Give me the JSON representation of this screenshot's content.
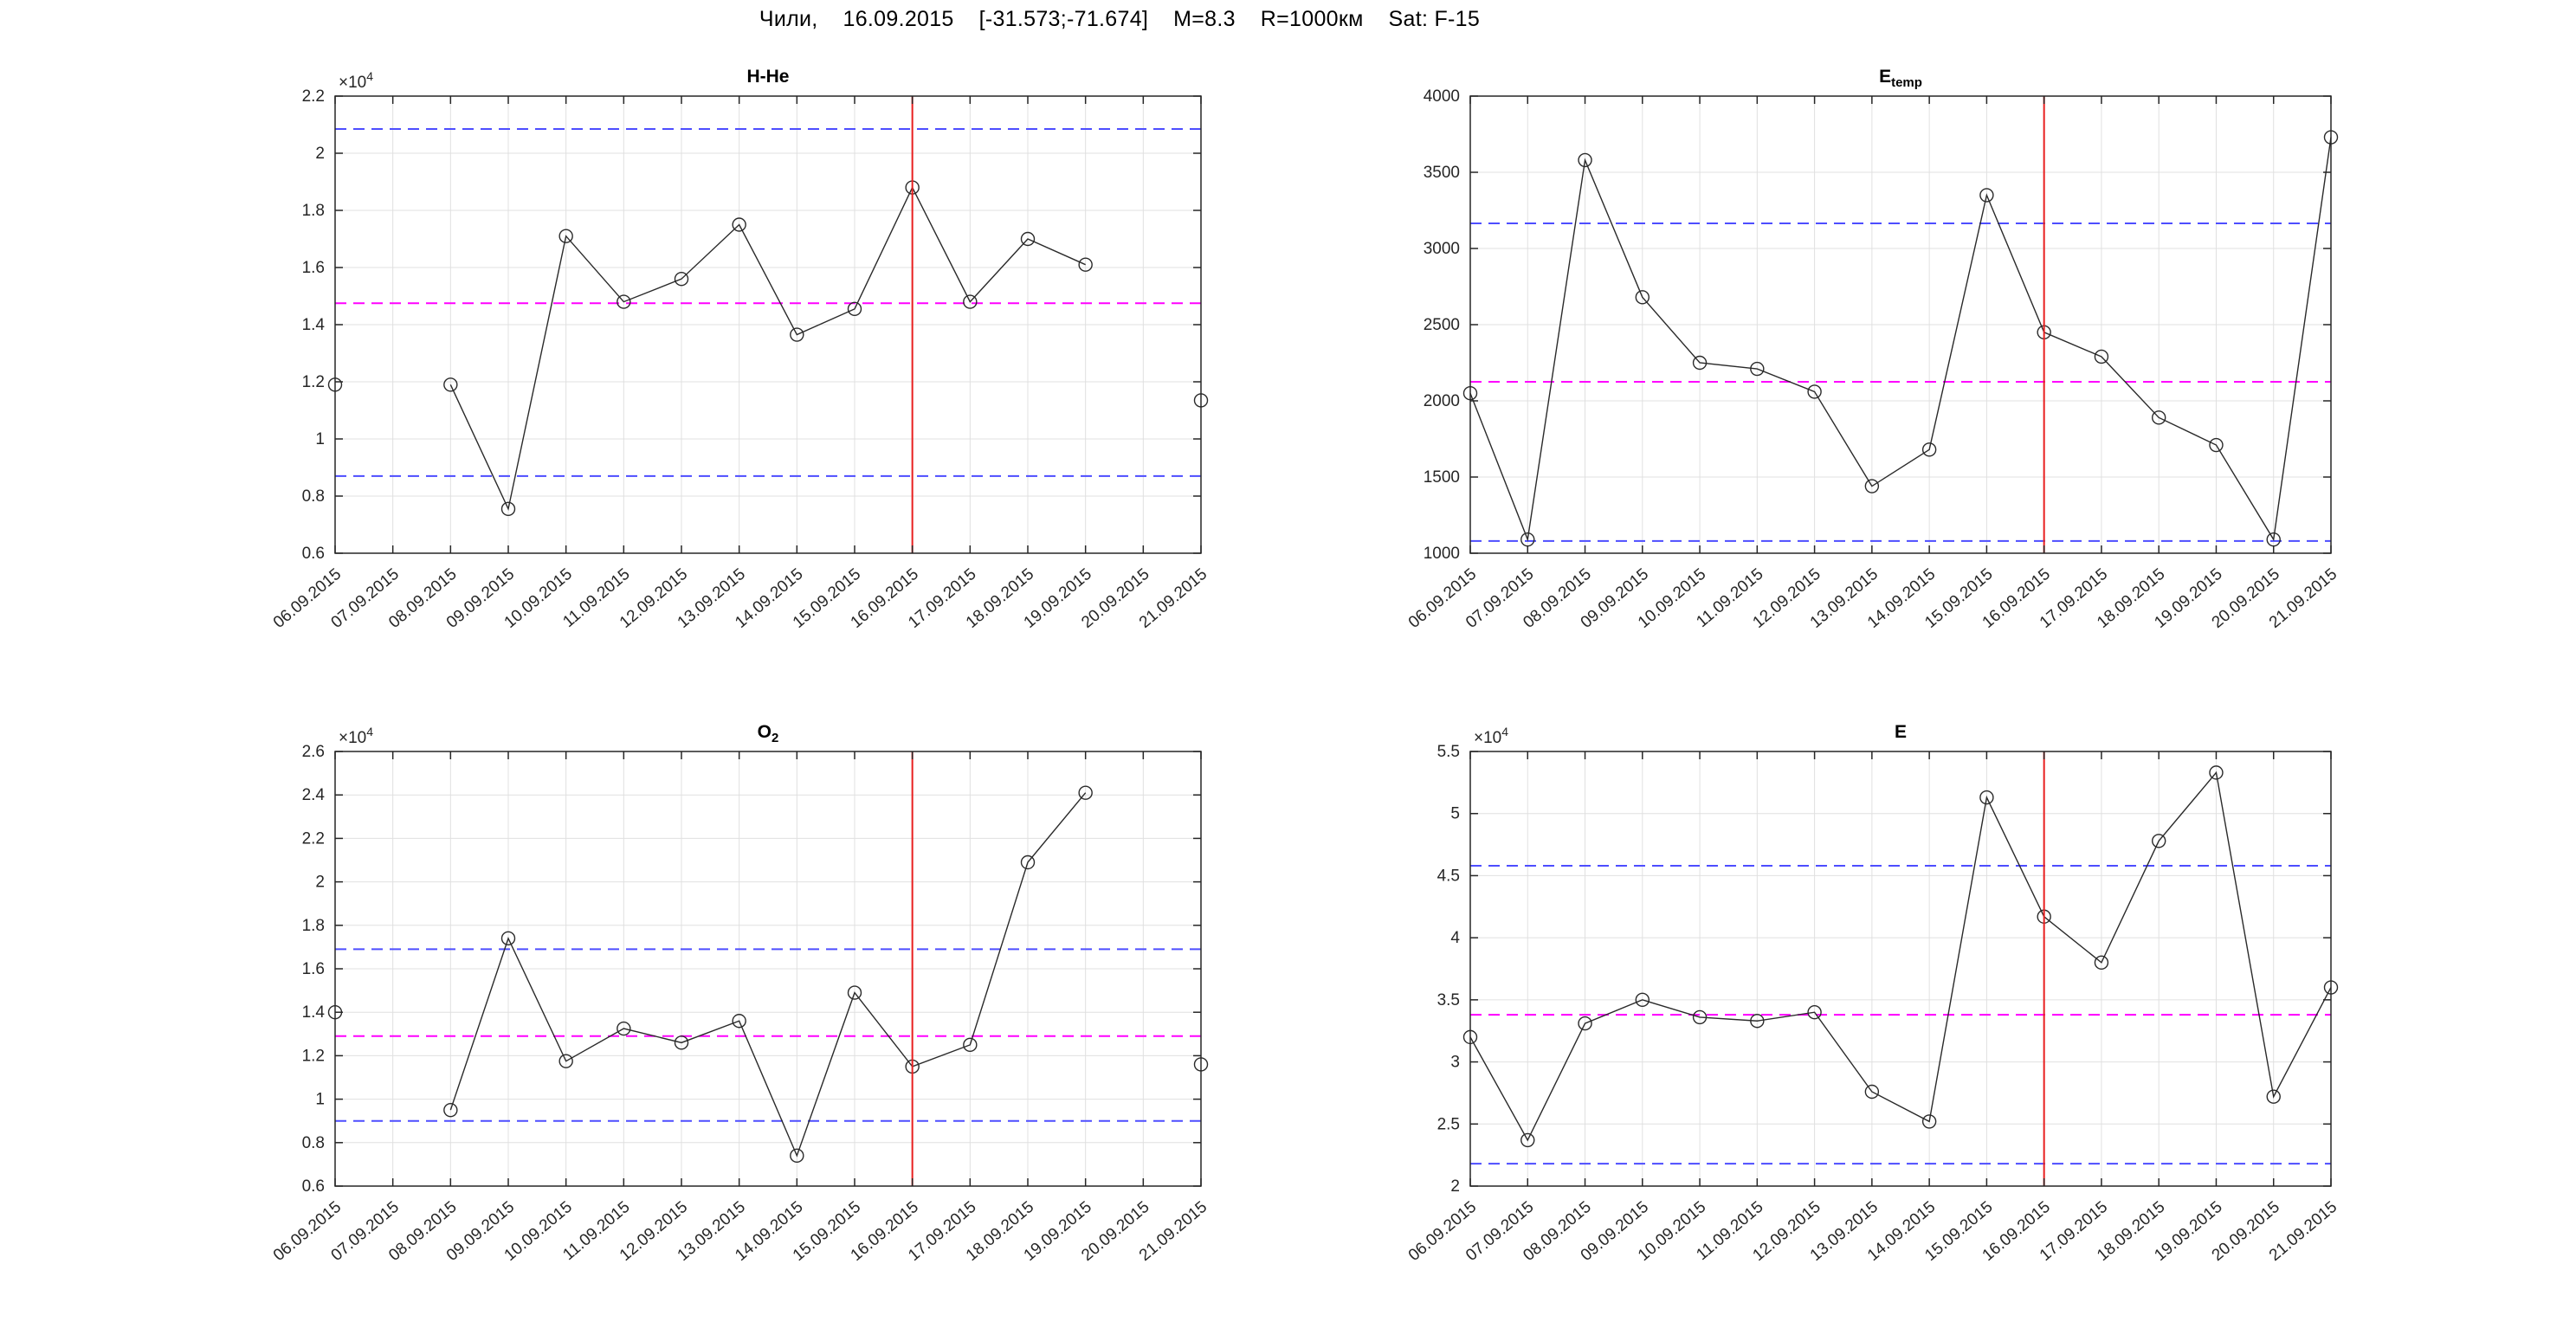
{
  "figure": {
    "title": "Чили,    16.09.2015    [-31.573;-71.674]    M=8.3    R=1000км    Sat: F-15",
    "title_segments": [
      "Чили,",
      "16.09.2015",
      "[-31.573;-71.674]",
      "M=8.3",
      "R=1000км",
      "Sat: F-15"
    ]
  },
  "colors": {
    "series": "#2a2a2a",
    "marker_stroke": "#2a2a2a",
    "grid": "#e0e0e0",
    "axis": "#262626",
    "text": "#262626",
    "ref_blue": "#4d4dff",
    "ref_magenta": "#ff00ff",
    "event_red": "#e82020",
    "background": "#ffffff"
  },
  "categories": [
    "06.09.2015",
    "07.09.2015",
    "08.09.2015",
    "09.09.2015",
    "10.09.2015",
    "11.09.2015",
    "12.09.2015",
    "13.09.2015",
    "14.09.2015",
    "15.09.2015",
    "16.09.2015",
    "17.09.2015",
    "18.09.2015",
    "19.09.2015",
    "20.09.2015",
    "21.09.2015"
  ],
  "event": {
    "date": "16.09.2015",
    "index": 10
  },
  "chart_data": [
    {
      "type": "line",
      "name": "h-he",
      "title": {
        "main": "H-He",
        "sub": ""
      },
      "y_axis": {
        "min": 0.6,
        "max": 2.2,
        "tick_step": 0.2,
        "tick_labels": [
          "0.6",
          "0.8",
          "1",
          "1.2",
          "1.4",
          "1.6",
          "1.8",
          "2",
          "2.2"
        ],
        "exponent": "×10",
        "exponent_sup": "4"
      },
      "unit_note": "values are in units of 10^4",
      "values": [
        1.19,
        null,
        1.19,
        0.755,
        1.71,
        1.48,
        1.56,
        1.75,
        1.365,
        1.455,
        1.88,
        1.48,
        1.7,
        1.61,
        null,
        1.135
      ],
      "ref_lines": {
        "upper": 2.085,
        "mean": 1.475,
        "lower": 0.87
      }
    },
    {
      "type": "line",
      "name": "e-temp",
      "title": {
        "main": "E",
        "sub": "temp"
      },
      "y_axis": {
        "min": 1000,
        "max": 4000,
        "tick_step": 500,
        "tick_labels": [
          "1000",
          "1500",
          "2000",
          "2500",
          "3000",
          "3500",
          "4000"
        ],
        "exponent": "",
        "exponent_sup": ""
      },
      "unit_note": "absolute values",
      "values": [
        2050,
        1090,
        3580,
        2680,
        2250,
        2210,
        2060,
        1440,
        1680,
        3350,
        2450,
        2290,
        1890,
        1710,
        1090,
        3730
      ],
      "ref_lines": {
        "upper": 3165,
        "mean": 2125,
        "lower": 1080
      }
    },
    {
      "type": "line",
      "name": "o2",
      "title": {
        "main": "O",
        "sub": "2"
      },
      "y_axis": {
        "min": 0.6,
        "max": 2.6,
        "tick_step": 0.2,
        "tick_labels": [
          "0.6",
          "0.8",
          "1",
          "1.2",
          "1.4",
          "1.6",
          "1.8",
          "2",
          "2.2",
          "2.4",
          "2.6"
        ],
        "exponent": "×10",
        "exponent_sup": "4"
      },
      "unit_note": "values are in units of 10^4",
      "values": [
        1.4,
        null,
        0.95,
        1.74,
        1.175,
        1.325,
        1.26,
        1.36,
        0.74,
        1.49,
        1.15,
        1.25,
        2.09,
        2.41,
        null,
        1.16
      ],
      "ref_lines": {
        "upper": 1.69,
        "mean": 1.29,
        "lower": 0.9
      }
    },
    {
      "type": "line",
      "name": "e",
      "title": {
        "main": "E",
        "sub": ""
      },
      "y_axis": {
        "min": 2,
        "max": 5.5,
        "tick_step": 0.5,
        "tick_labels": [
          "2",
          "2.5",
          "3",
          "3.5",
          "4",
          "4.5",
          "5",
          "5.5"
        ],
        "exponent": "×10",
        "exponent_sup": "4"
      },
      "unit_note": "values are in units of 10^4",
      "values": [
        3.2,
        2.37,
        3.31,
        3.5,
        3.36,
        3.33,
        3.4,
        2.76,
        2.52,
        5.13,
        4.17,
        3.8,
        4.78,
        5.33,
        2.72,
        3.6
      ],
      "ref_lines": {
        "upper": 4.58,
        "mean": 3.38,
        "lower": 2.18
      }
    }
  ]
}
